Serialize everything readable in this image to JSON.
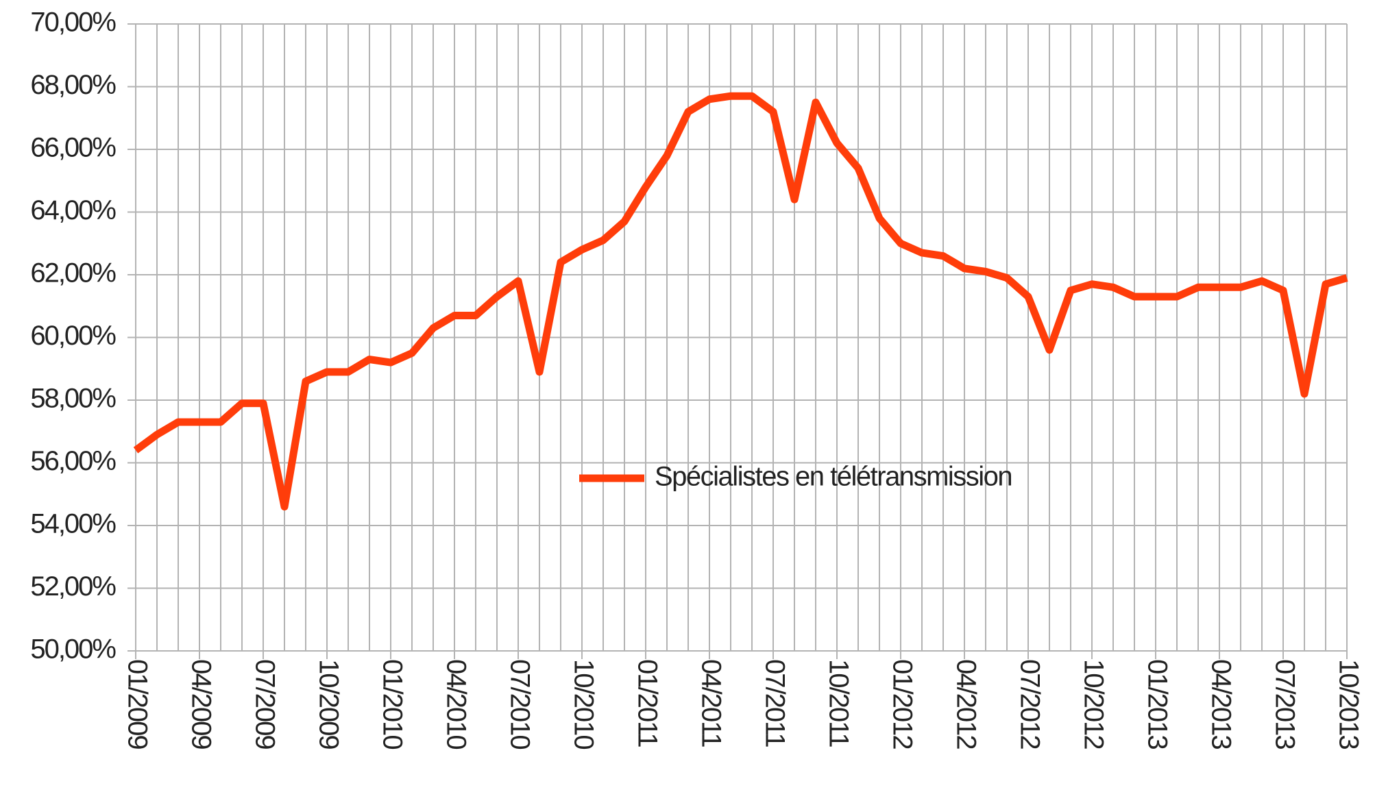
{
  "chart_data": {
    "type": "line",
    "categories": [
      "01/2009",
      null,
      null,
      "04/2009",
      null,
      null,
      "07/2009",
      null,
      null,
      "10/2009",
      null,
      null,
      "01/2010",
      null,
      null,
      "04/2010",
      null,
      null,
      "07/2010",
      null,
      null,
      "10/2010",
      null,
      null,
      "01/2011",
      null,
      null,
      "04/2011",
      null,
      null,
      "07/2011",
      null,
      null,
      "10/2011",
      null,
      null,
      "01/2012",
      null,
      null,
      "04/2012",
      null,
      null,
      "07/2012",
      null,
      null,
      "10/2012",
      null,
      null,
      "01/2013",
      null,
      null,
      "04/2013",
      null,
      null,
      "07/2013",
      null,
      null,
      "10/2013"
    ],
    "series": [
      {
        "name": "Spécialistes en télétransmission",
        "color": "#ff3d0a",
        "values": [
          56.4,
          56.9,
          57.3,
          57.3,
          57.3,
          57.9,
          57.9,
          54.6,
          58.6,
          58.9,
          58.9,
          59.3,
          59.2,
          59.5,
          60.3,
          60.7,
          60.7,
          61.3,
          61.8,
          58.9,
          62.4,
          62.8,
          63.1,
          63.7,
          64.8,
          65.8,
          67.2,
          67.6,
          67.7,
          67.7,
          67.2,
          64.4,
          67.5,
          66.2,
          65.4,
          63.8,
          63.0,
          62.7,
          62.6,
          62.2,
          62.1,
          61.9,
          61.3,
          59.6,
          61.5,
          61.7,
          61.6,
          61.3,
          61.3,
          61.3,
          61.6,
          61.6,
          61.6,
          61.8,
          61.5,
          58.2,
          61.7,
          61.9
        ]
      }
    ],
    "ylim": [
      50,
      70
    ],
    "yticks": [
      {
        "value": 50,
        "label": "50,00%"
      },
      {
        "value": 52,
        "label": "52,00%"
      },
      {
        "value": 54,
        "label": "54,00%"
      },
      {
        "value": 56,
        "label": "56,00%"
      },
      {
        "value": 58,
        "label": "58,00%"
      },
      {
        "value": 60,
        "label": "60,00%"
      },
      {
        "value": 62,
        "label": "62,00%"
      },
      {
        "value": 64,
        "label": "64,00%"
      },
      {
        "value": 66,
        "label": "66,00%"
      },
      {
        "value": 68,
        "label": "68,00%"
      },
      {
        "value": 70,
        "label": "70,00%"
      }
    ],
    "grid": true
  }
}
